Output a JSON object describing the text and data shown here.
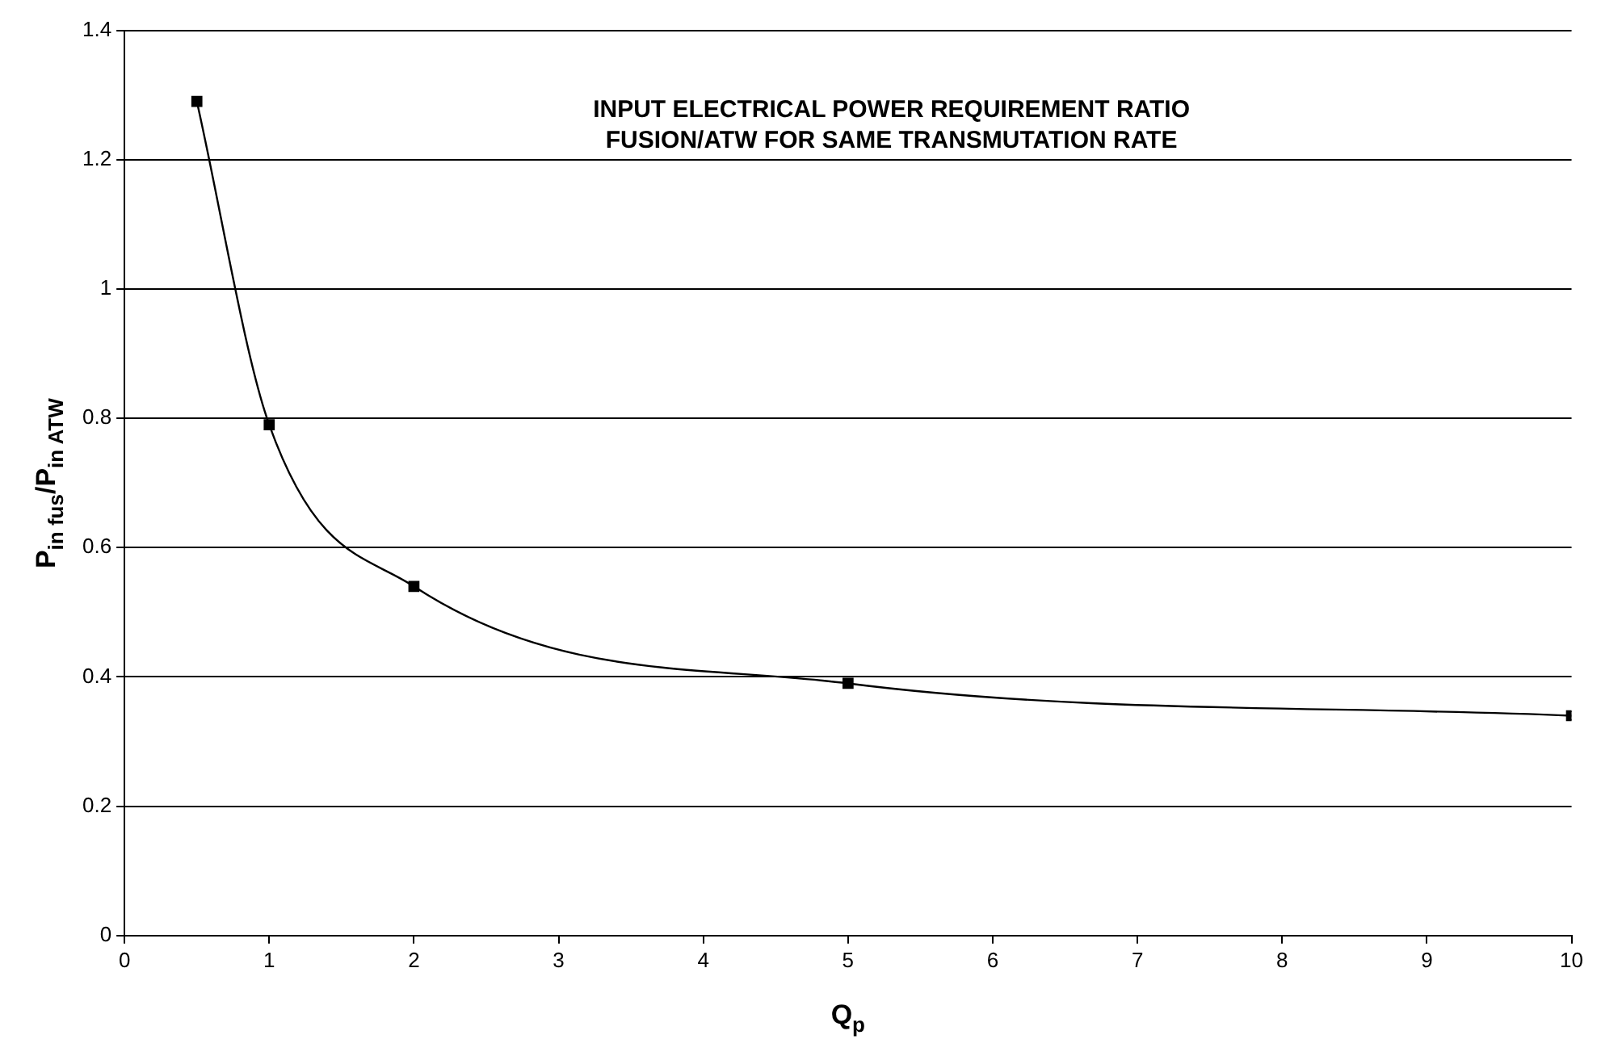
{
  "chart_data": {
    "type": "line",
    "title": "INPUT ELECTRICAL POWER REQUIREMENT RATIO\nFUSION/ATW FOR SAME TRANSMUTATION RATE",
    "xlabel": "Q$_{p}$",
    "ylabel": "P$_{in fus}$/P$_{in ATW}$",
    "x": [
      0.5,
      1,
      2,
      5,
      10
    ],
    "series": [
      {
        "color": "#000000",
        "values": [
          1.29,
          0.79,
          0.54,
          0.39,
          0.34
        ]
      }
    ],
    "xlim": [
      0,
      10
    ],
    "xticks": [
      0,
      1,
      2,
      3,
      4,
      5,
      6,
      7,
      8,
      9,
      10
    ],
    "ylim": [
      0,
      1.4
    ],
    "yticks": [
      0,
      0.2,
      0.4,
      0.6,
      0.8,
      1,
      1.2,
      1.4
    ],
    "grid": "y",
    "marker": "square",
    "line_style": "solid",
    "legend": false
  }
}
